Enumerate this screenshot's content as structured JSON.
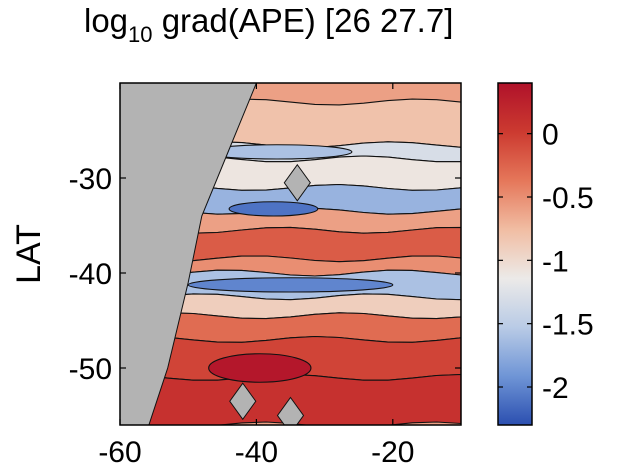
{
  "chart_data": {
    "type": "heatmap",
    "title_prefix": "log",
    "title_sub": "10",
    "title_suffix": " grad(APE) [26  27.7]",
    "xlabel": "",
    "ylabel": "LAT",
    "xlim": [
      -60,
      -10
    ],
    "ylim": [
      -56,
      -20
    ],
    "x_ticks": [
      -60,
      -40,
      -20
    ],
    "x_tick_labels": [
      "-60",
      "-40",
      "-20"
    ],
    "y_ticks": [
      -30,
      -40,
      -50
    ],
    "y_tick_labels": [
      "-30",
      "-40",
      "-50"
    ],
    "colorbar": {
      "range": [
        -2.3,
        0.4
      ],
      "ticks": [
        0,
        -0.5,
        -1,
        -1.5,
        -2
      ],
      "tick_labels": [
        "0",
        "-0.5",
        "-1",
        "-1.5",
        "-2"
      ],
      "colormap": [
        "#2b4fb0",
        "#6f95d6",
        "#b9cbe6",
        "#eceae8",
        "#f1bda3",
        "#e5775a",
        "#cc3a30",
        "#b0122a"
      ]
    },
    "land_color": "#b3b3b3",
    "bands": [
      {
        "lat": [
          -22,
          -26.5
        ],
        "value": -0.8
      },
      {
        "lat": [
          -26.5,
          -28
        ],
        "value": -1.3
      },
      {
        "lat": [
          -28,
          -31
        ],
        "value": -1.1
      },
      {
        "lat": [
          -31,
          -33.5
        ],
        "value": -1.7
      },
      {
        "lat": [
          -33.5,
          -35.5
        ],
        "value": -0.6
      },
      {
        "lat": [
          -35.5,
          -38.5
        ],
        "value": -0.2
      },
      {
        "lat": [
          -38.5,
          -40
        ],
        "value": -0.5
      },
      {
        "lat": [
          -40,
          -42.5
        ],
        "value": -1.6
      },
      {
        "lat": [
          -42.5,
          -44.5
        ],
        "value": -0.9
      },
      {
        "lat": [
          -44.5,
          -47
        ],
        "value": -0.3
      },
      {
        "lat": [
          -47,
          -51
        ],
        "value": -0.05
      },
      {
        "lat": [
          -51,
          -56
        ],
        "value": 0.1
      }
    ],
    "features": [
      {
        "lon_range": [
          -47,
          -32
        ],
        "lat_range": [
          -48.5,
          -51.5
        ],
        "value": 0.35
      },
      {
        "lon_range": [
          -44,
          -31
        ],
        "lat_range": [
          -32.5,
          -34
        ],
        "value": -2.1
      },
      {
        "lon_range": [
          -50,
          -20
        ],
        "lat_range": [
          -40.5,
          -42
        ],
        "value": -2.0
      },
      {
        "lon_range": [
          -48,
          -26
        ],
        "lat_range": [
          -26.5,
          -28
        ],
        "value": -1.6
      }
    ]
  }
}
